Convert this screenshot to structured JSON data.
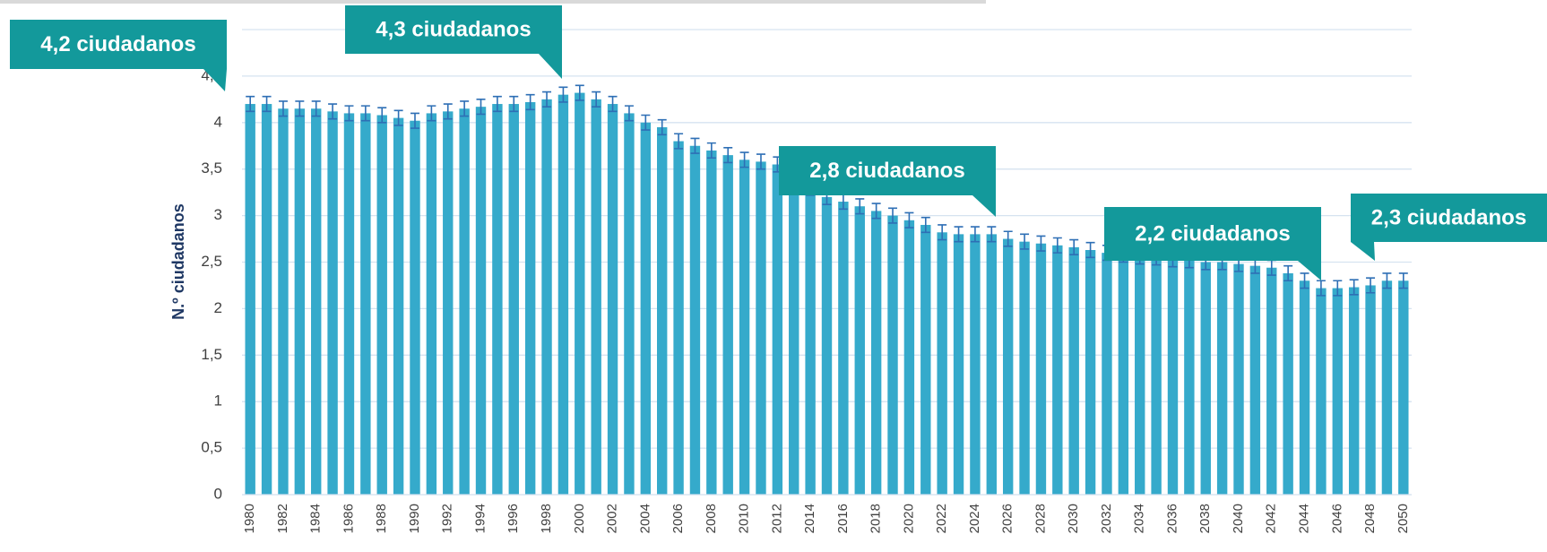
{
  "chart_data": {
    "type": "bar",
    "y_label": "N.º ciudadanos",
    "categories": [
      "1980",
      null,
      "1982",
      null,
      "1984",
      null,
      "1986",
      null,
      "1988",
      null,
      "1990",
      null,
      "1992",
      null,
      "1994",
      null,
      "1996",
      null,
      "1998",
      null,
      "2000",
      null,
      "2002",
      null,
      "2004",
      null,
      "2006",
      null,
      "2008",
      null,
      "2010",
      null,
      "2012",
      null,
      "2014",
      null,
      "2016",
      null,
      "2018",
      null,
      "2020",
      null,
      "2022",
      null,
      "2024",
      null,
      "2026",
      null,
      "2028",
      null,
      "2030",
      null,
      "2032",
      null,
      "2034",
      null,
      "2036",
      null,
      "2038",
      null,
      "2040",
      null,
      "2042",
      null,
      "2044",
      null,
      "2046",
      null,
      "2048",
      null,
      "2050"
    ],
    "values": [
      4.2,
      4.2,
      4.15,
      4.15,
      4.15,
      4.12,
      4.1,
      4.1,
      4.08,
      4.05,
      4.02,
      4.1,
      4.12,
      4.15,
      4.17,
      4.2,
      4.2,
      4.22,
      4.25,
      4.3,
      4.32,
      4.25,
      4.2,
      4.1,
      4.0,
      3.95,
      3.8,
      3.75,
      3.7,
      3.65,
      3.6,
      3.58,
      3.55,
      3.4,
      3.3,
      3.2,
      3.15,
      3.1,
      3.05,
      3.0,
      2.95,
      2.9,
      2.82,
      2.8,
      2.8,
      2.8,
      2.75,
      2.72,
      2.7,
      2.68,
      2.66,
      2.63,
      2.6,
      2.58,
      2.56,
      2.55,
      2.53,
      2.52,
      2.5,
      2.5,
      2.48,
      2.46,
      2.44,
      2.38,
      2.3,
      2.22,
      2.22,
      2.23,
      2.25,
      2.3,
      2.3
    ],
    "error": 0.08,
    "color": "#35aacb",
    "error_color": "#2e6fb5",
    "ylim": [
      0,
      5
    ],
    "yticks": [
      0,
      {
        "value": 0.5,
        "label": "0,5"
      },
      1,
      {
        "value": 1.5,
        "label": "1,5"
      },
      2,
      {
        "value": 2.5,
        "label": "2,5"
      },
      3,
      {
        "value": 3.5,
        "label": "3,5"
      },
      4,
      {
        "value": 4.5,
        "label": "4,5"
      },
      5
    ],
    "grid": true,
    "annotations": [
      "4,2 ciudadanos",
      "4,3 ciudadanos",
      "2,8 ciudadanos",
      "2,2 ciudadanos",
      "2,3 ciudadanos"
    ],
    "annotation_color": "#13999b"
  }
}
